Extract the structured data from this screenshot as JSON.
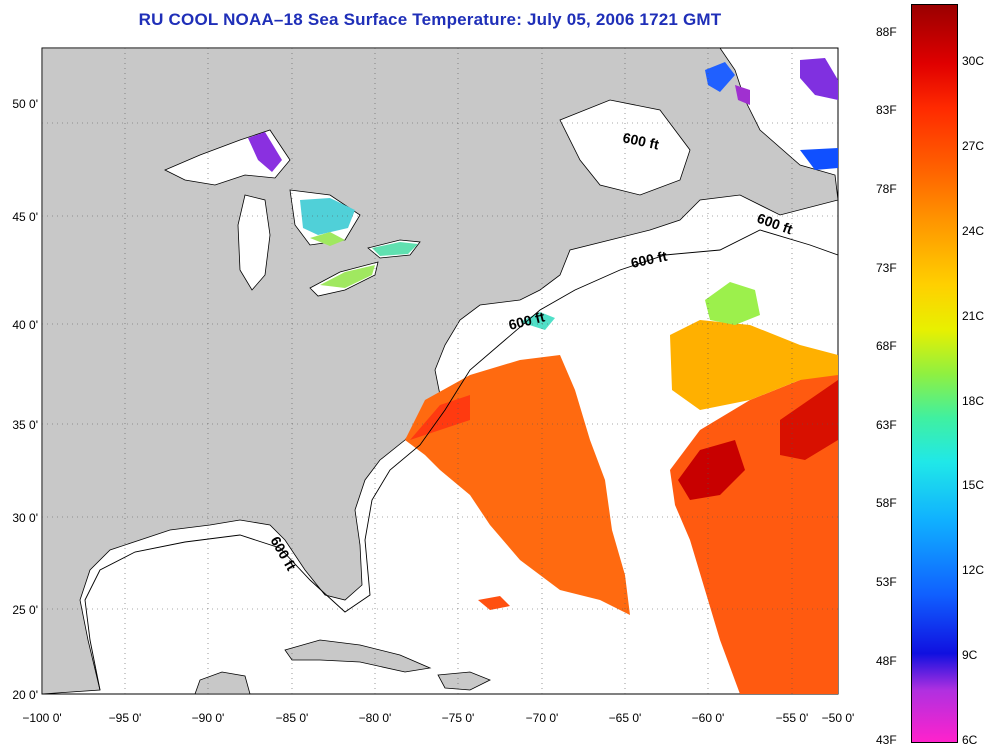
{
  "title": "RU COOL  NOAA–18  Sea Surface Temperature:  July 05, 2006 1721 GMT",
  "axes": {
    "x_ticks": [
      "−100 0'",
      "−95 0'",
      "−90 0'",
      "−85 0'",
      "−80 0'",
      "−75 0'",
      "−70 0'",
      "−65 0'",
      "−60 0'",
      "−55 0'",
      "−50 0'"
    ],
    "y_ticks": [
      "50 0'",
      "45 0'",
      "40 0'",
      "35 0'",
      "30 0'",
      "25 0'",
      "20 0'"
    ]
  },
  "isobath_labels": [
    "600 ft",
    "600 ft",
    "600 ft",
    "600 ft",
    "600 ft"
  ],
  "colorbar": {
    "fahrenheit": [
      "88F",
      "83F",
      "78F",
      "73F",
      "68F",
      "63F",
      "58F",
      "53F",
      "48F",
      "43F"
    ],
    "celsius": [
      "30C",
      "27C",
      "24C",
      "21C",
      "18C",
      "15C",
      "12C",
      "9C",
      "6C"
    ]
  },
  "colors": {
    "land": "#c8c8c8",
    "title": "#1f2fb8",
    "ocean": "#ffffff"
  }
}
